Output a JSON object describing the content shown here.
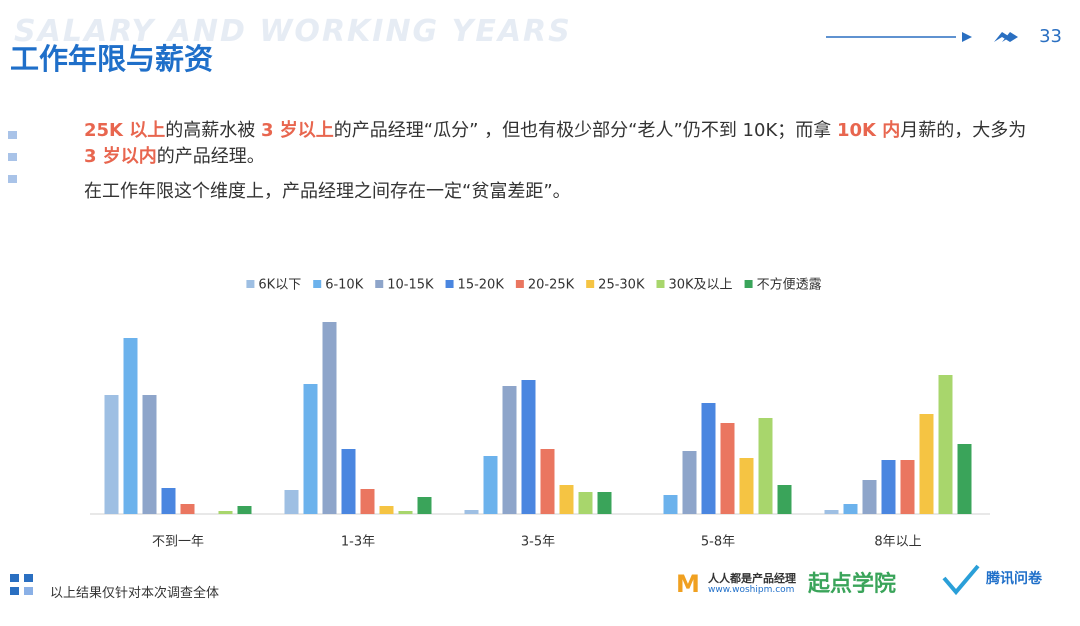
{
  "header": {
    "subtitle_en": "SALARY AND WORKING YEARS",
    "title": "工作年限与薪资",
    "page_number": "33"
  },
  "paragraphs": [
    [
      {
        "text": "25K 以上",
        "highlight": true
      },
      {
        "text": "的高薪水被 ",
        "highlight": false
      },
      {
        "text": "3 岁以上",
        "highlight": true
      },
      {
        "text": "的产品经理“瓜分” ，但也有极少部分“老人”仍不到 10K；而拿 ",
        "highlight": false
      },
      {
        "text": "10K 内",
        "highlight": true
      },
      {
        "text": "月薪的，大多为 ",
        "highlight": false
      },
      {
        "text": "3 岁以内",
        "highlight": true
      },
      {
        "text": "的产品经理。",
        "highlight": false
      }
    ],
    [
      {
        "text": "在工作年限这个维度上，产品经理之间存在一定“贫富差距”。",
        "highlight": false
      }
    ]
  ],
  "chart_data": {
    "type": "bar",
    "categories": [
      "不到一年",
      "1-3年",
      "3-5年",
      "5-8年",
      "8年以上"
    ],
    "series": [
      {
        "name": "6K以下",
        "color": "#9ebfe3",
        "values": [
          119,
          24,
          4,
          0,
          4
        ]
      },
      {
        "name": "6-10K",
        "color": "#6cb2ec",
        "values": [
          176,
          130,
          58,
          19,
          10
        ]
      },
      {
        "name": "10-15K",
        "color": "#8ea5ca",
        "values": [
          119,
          192,
          128,
          63,
          34
        ]
      },
      {
        "name": "15-20K",
        "color": "#4a86e0",
        "values": [
          26,
          65,
          134,
          111,
          54
        ]
      },
      {
        "name": "20-25K",
        "color": "#ea7660",
        "values": [
          10,
          25,
          65,
          91,
          54
        ]
      },
      {
        "name": "25-30K",
        "color": "#f5c443",
        "values": [
          0,
          8,
          29,
          56,
          100
        ]
      },
      {
        "name": "30K及以上",
        "color": "#a8d66c",
        "values": [
          3,
          3,
          22,
          96,
          139
        ]
      },
      {
        "name": "不方便透露",
        "color": "#3aa45a",
        "values": [
          8,
          17,
          22,
          29,
          70
        ]
      }
    ],
    "legend": "top"
  },
  "footer": {
    "note": "以上结果仅针对本次调查全体",
    "logos": [
      "人人都是产品经理",
      "www.woshipm.com",
      "起点学院",
      "腾讯问卷"
    ]
  }
}
